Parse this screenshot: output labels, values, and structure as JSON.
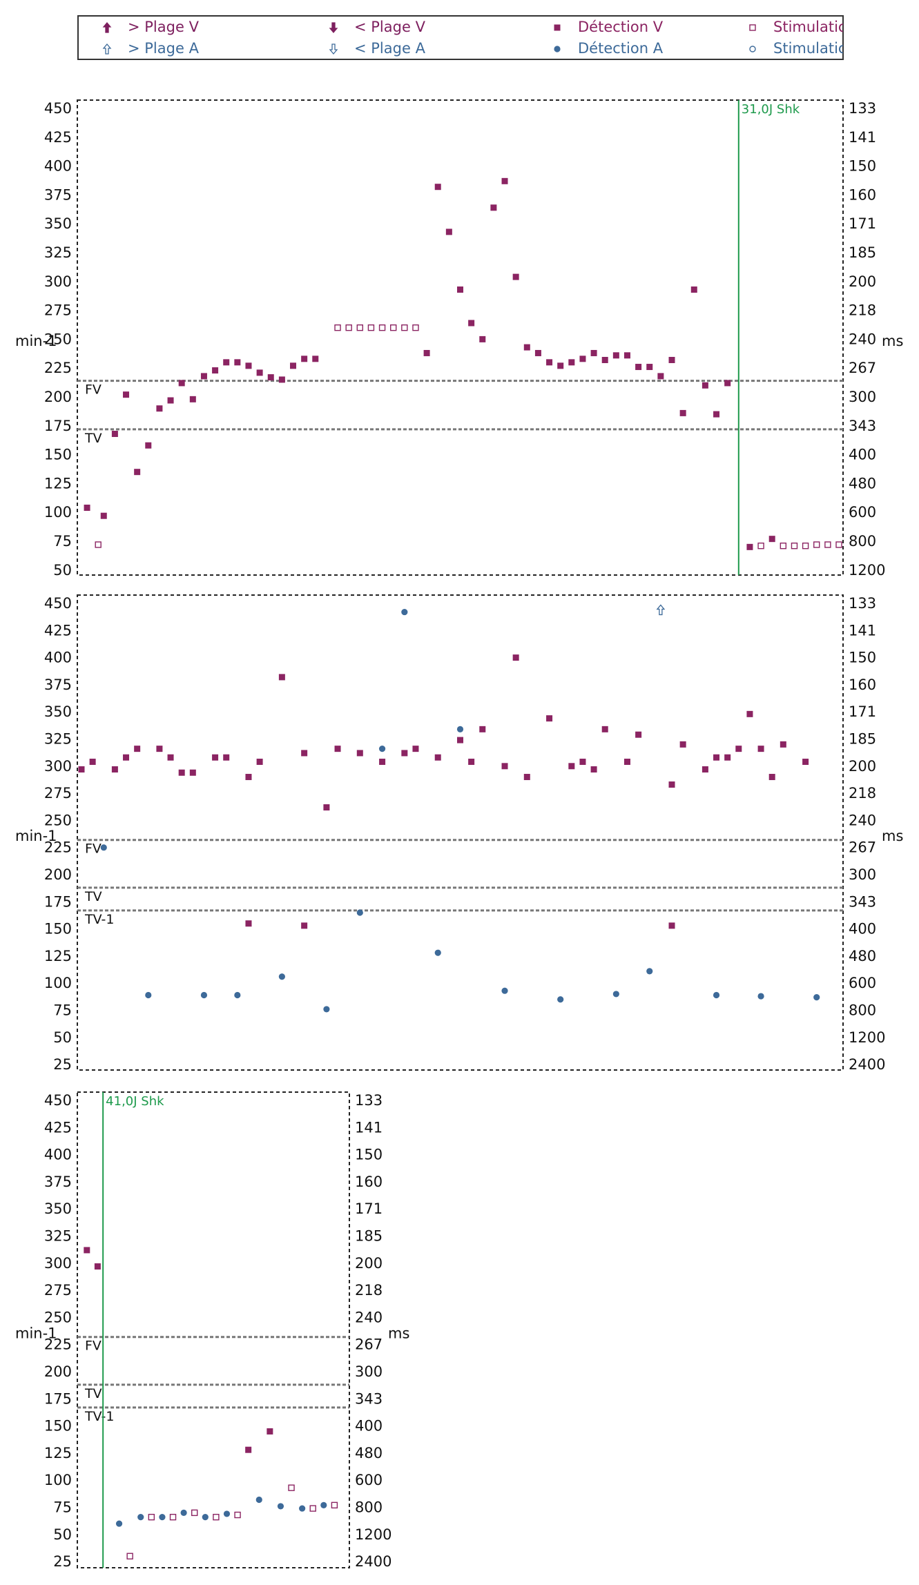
{
  "legend": {
    "items": [
      {
        "key": "plage_v_up",
        "label": "> Plage V",
        "color": "#7d1f5e",
        "symbol": "arrow-up-filled-icon"
      },
      {
        "key": "plage_v_down",
        "label": "< Plage V",
        "color": "#7d1f5e",
        "symbol": "arrow-down-filled-icon"
      },
      {
        "key": "detection_v",
        "label": "Détection V",
        "color": "#8b2462",
        "symbol": "filled-square-icon"
      },
      {
        "key": "stim_v",
        "label": "Stimulatic",
        "color": "#8b2462",
        "symbol": "hollow-square-icon"
      },
      {
        "key": "plage_a_up",
        "label": "> Plage A",
        "color": "#3d6a99",
        "symbol": "arrow-up-hollow-icon"
      },
      {
        "key": "plage_a_down",
        "label": "< Plage A",
        "color": "#3d6a99",
        "symbol": "arrow-down-hollow-icon"
      },
      {
        "key": "detection_a",
        "label": "Détection A",
        "color": "#3d6a99",
        "symbol": "filled-circle-icon"
      },
      {
        "key": "stim_a",
        "label": "Stimulatic",
        "color": "#3d6a99",
        "symbol": "hollow-circle-icon"
      }
    ]
  },
  "chart_data": [
    {
      "type": "scatter",
      "ylabel_left": "min-1",
      "ylabel_right": "ms",
      "ylim": [
        50,
        450
      ],
      "yticks_left": [
        450,
        425,
        400,
        375,
        350,
        325,
        300,
        275,
        250,
        225,
        200,
        175,
        150,
        125,
        100,
        75,
        50
      ],
      "yticks_right": [
        "133",
        "141",
        "150",
        "160",
        "171",
        "185",
        "200",
        "218",
        "240",
        "267",
        "300",
        "343",
        "400",
        "480",
        "600",
        "800",
        "1200"
      ],
      "zones": [
        {
          "label": "FV",
          "value": 214
        },
        {
          "label": "TV",
          "value": 172
        }
      ],
      "shock": {
        "label": "31,0J Shk",
        "x": 59
      },
      "xlim": [
        0,
        68
      ],
      "series": [
        {
          "key": "detection_v",
          "points": [
            [
              0.5,
              104
            ],
            [
              2,
              97
            ],
            [
              3,
              168
            ],
            [
              4,
              202
            ],
            [
              5,
              135
            ],
            [
              6,
              158
            ],
            [
              7,
              190
            ],
            [
              8,
              197
            ],
            [
              9,
              212
            ],
            [
              10,
              198
            ],
            [
              11,
              218
            ],
            [
              12,
              223
            ],
            [
              13,
              230
            ],
            [
              14,
              230
            ],
            [
              15,
              227
            ],
            [
              16,
              221
            ],
            [
              17,
              217
            ],
            [
              18,
              215
            ],
            [
              19,
              227
            ],
            [
              20,
              233
            ],
            [
              21,
              233
            ],
            [
              31,
              238
            ],
            [
              32,
              382
            ],
            [
              33,
              343
            ],
            [
              34,
              293
            ],
            [
              35,
              264
            ],
            [
              36,
              250
            ],
            [
              37,
              364
            ],
            [
              38,
              387
            ],
            [
              39,
              304
            ],
            [
              40,
              243
            ],
            [
              41,
              238
            ],
            [
              42,
              230
            ],
            [
              43,
              227
            ],
            [
              44,
              230
            ],
            [
              45,
              233
            ],
            [
              46,
              238
            ],
            [
              47,
              232
            ],
            [
              48,
              236
            ],
            [
              49,
              236
            ],
            [
              50,
              226
            ],
            [
              51,
              226
            ],
            [
              52,
              218
            ],
            [
              53,
              232
            ],
            [
              54,
              186
            ],
            [
              55,
              293
            ],
            [
              56,
              210
            ],
            [
              57,
              185
            ],
            [
              58,
              212
            ],
            [
              60,
              70
            ],
            [
              62,
              77
            ]
          ]
        },
        {
          "key": "stim_v",
          "points": [
            [
              1.5,
              72
            ],
            [
              23,
              260
            ],
            [
              24,
              260
            ],
            [
              25,
              260
            ],
            [
              26,
              260
            ],
            [
              27,
              260
            ],
            [
              28,
              260
            ],
            [
              29,
              260
            ],
            [
              30,
              260
            ],
            [
              61,
              71
            ],
            [
              63,
              71
            ],
            [
              64,
              71
            ],
            [
              65,
              71
            ],
            [
              66,
              72
            ],
            [
              67,
              72
            ],
            [
              68,
              72
            ]
          ]
        }
      ]
    },
    {
      "type": "scatter",
      "ylabel_left": "min-1",
      "ylabel_right": "ms",
      "ylim": [
        25,
        450
      ],
      "yticks_left": [
        450,
        425,
        400,
        375,
        350,
        325,
        300,
        275,
        250,
        225,
        200,
        175,
        150,
        125,
        100,
        75,
        50,
        25
      ],
      "yticks_right": [
        "133",
        "141",
        "150",
        "160",
        "171",
        "185",
        "200",
        "218",
        "240",
        "267",
        "300",
        "343",
        "400",
        "480",
        "600",
        "800",
        "1200",
        "2400"
      ],
      "zones": [
        {
          "label": "FV",
          "value": 232
        },
        {
          "label": "TV",
          "value": 188
        },
        {
          "label": "TV-1",
          "value": 167
        }
      ],
      "xlim": [
        0,
        68
      ],
      "series": [
        {
          "key": "detection_v",
          "points": [
            [
              0,
              297
            ],
            [
              1,
              304
            ],
            [
              3,
              297
            ],
            [
              4,
              308
            ],
            [
              5,
              316
            ],
            [
              7,
              316
            ],
            [
              8,
              308
            ],
            [
              9,
              294
            ],
            [
              10,
              294
            ],
            [
              12,
              308
            ],
            [
              13,
              308
            ],
            [
              15,
              290
            ],
            [
              16,
              304
            ],
            [
              18,
              382
            ],
            [
              20,
              312
            ],
            [
              22,
              262
            ],
            [
              23,
              316
            ],
            [
              25,
              312
            ],
            [
              27,
              304
            ],
            [
              29,
              312
            ],
            [
              30,
              316
            ],
            [
              32,
              308
            ],
            [
              34,
              324
            ],
            [
              35,
              304
            ],
            [
              36,
              334
            ],
            [
              38,
              300
            ],
            [
              39,
              400
            ],
            [
              40,
              290
            ],
            [
              42,
              344
            ],
            [
              44,
              300
            ],
            [
              45,
              304
            ],
            [
              46,
              297
            ],
            [
              47,
              334
            ],
            [
              49,
              304
            ],
            [
              50,
              329
            ],
            [
              53,
              283
            ],
            [
              54,
              320
            ],
            [
              56,
              297
            ],
            [
              57,
              308
            ],
            [
              58,
              308
            ],
            [
              59,
              316
            ],
            [
              60,
              348
            ],
            [
              61,
              316
            ],
            [
              62,
              290
            ],
            [
              63,
              320
            ],
            [
              65,
              304
            ],
            [
              15,
              155
            ],
            [
              20,
              153
            ],
            [
              53,
              153
            ]
          ]
        },
        {
          "key": "detection_a",
          "points": [
            [
              2,
              225
            ],
            [
              6,
              89
            ],
            [
              11,
              89
            ],
            [
              14,
              89
            ],
            [
              18,
              106
            ],
            [
              22,
              76
            ],
            [
              25,
              165
            ],
            [
              27,
              316
            ],
            [
              29,
              442
            ],
            [
              32,
              128
            ],
            [
              34,
              334
            ],
            [
              38,
              93
            ],
            [
              43,
              85
            ],
            [
              48,
              90
            ],
            [
              51,
              111
            ],
            [
              57,
              89
            ],
            [
              61,
              88
            ],
            [
              66,
              87
            ]
          ]
        },
        {
          "key": "plage_a_up",
          "points": [
            [
              52,
              444
            ]
          ]
        }
      ]
    },
    {
      "type": "scatter",
      "ylabel_left": "min-1",
      "ylabel_right": "ms",
      "ylim": [
        25,
        450
      ],
      "yticks_left": [
        450,
        425,
        400,
        375,
        350,
        325,
        300,
        275,
        250,
        225,
        200,
        175,
        150,
        125,
        100,
        75,
        50,
        25
      ],
      "yticks_right": [
        "133",
        "141",
        "150",
        "160",
        "171",
        "185",
        "200",
        "218",
        "240",
        "267",
        "300",
        "343",
        "400",
        "480",
        "600",
        "800",
        "1200",
        "2400"
      ],
      "zones": [
        {
          "label": "FV",
          "value": 232
        },
        {
          "label": "TV",
          "value": 188
        },
        {
          "label": "TV-1",
          "value": 167
        }
      ],
      "shock": {
        "label": "41,0J Shk",
        "x": 1.5
      },
      "xlim": [
        -0.5,
        24
      ],
      "series": [
        {
          "key": "detection_v",
          "points": [
            [
              0,
              312
            ],
            [
              1,
              297
            ],
            [
              15,
              128
            ],
            [
              17,
              145
            ]
          ]
        },
        {
          "key": "detection_a",
          "points": [
            [
              3,
              60
            ],
            [
              5,
              66
            ],
            [
              7,
              66
            ],
            [
              9,
              70
            ],
            [
              11,
              66
            ],
            [
              13,
              69
            ],
            [
              16,
              82
            ],
            [
              18,
              76
            ],
            [
              20,
              74
            ],
            [
              22,
              77
            ]
          ]
        },
        {
          "key": "stim_v",
          "points": [
            [
              4,
              30
            ],
            [
              6,
              66
            ],
            [
              8,
              66
            ],
            [
              10,
              70
            ],
            [
              12,
              66
            ],
            [
              14,
              68
            ],
            [
              19,
              93
            ],
            [
              21,
              74
            ],
            [
              23,
              77
            ]
          ]
        }
      ]
    }
  ]
}
